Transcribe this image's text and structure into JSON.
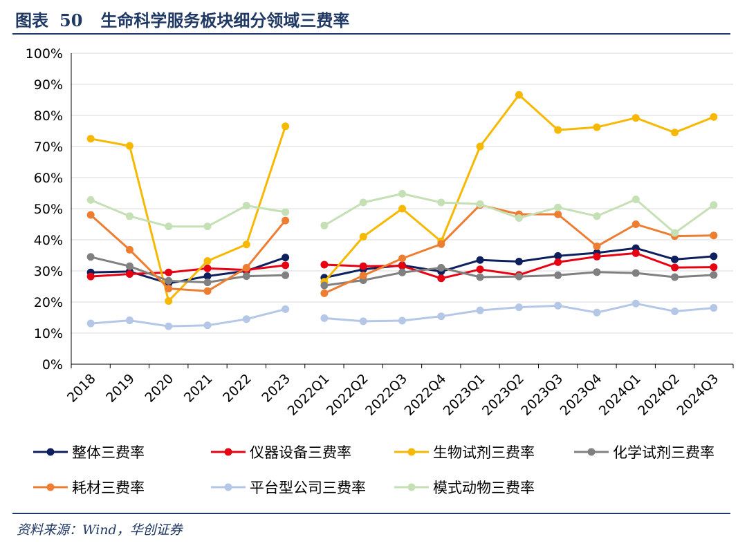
{
  "figure": {
    "label": "图表",
    "number": "50",
    "title": "生命科学服务板块细分领域三费率",
    "source": "资料来源：Wind，华创证券"
  },
  "colors": {
    "header": "#1f3864",
    "axis": "#000000",
    "grid": "#d9d9d9"
  },
  "chart_data": {
    "type": "line",
    "title": "",
    "xlabel": "",
    "ylabel": "",
    "ylim": [
      0,
      100
    ],
    "yticks": [
      "0%",
      "10%",
      "20%",
      "30%",
      "40%",
      "50%",
      "60%",
      "70%",
      "80%",
      "90%",
      "100%"
    ],
    "grid": true,
    "legend_position": "bottom",
    "categories": [
      "2018",
      "2019",
      "2020",
      "2021",
      "2022",
      "2023",
      "2022Q1",
      "2022Q2",
      "2022Q3",
      "2022Q4",
      "2023Q1",
      "2023Q2",
      "2023Q3",
      "2023Q4",
      "2024Q1",
      "2024Q2",
      "2024Q3"
    ],
    "segments": [
      [
        0,
        5
      ],
      [
        6,
        16
      ]
    ],
    "series": [
      {
        "name": "整体三费率",
        "color": "#0d1f5c",
        "values": [
          29.5,
          29.8,
          26,
          28.3,
          30,
          34.3,
          27.8,
          30.5,
          31.8,
          29.8,
          33.5,
          33,
          34.8,
          35.8,
          37.3,
          33.7,
          34.7
        ]
      },
      {
        "name": "仪器设备三费率",
        "color": "#e60012",
        "values": [
          28.2,
          29,
          29.5,
          30.8,
          30.3,
          31.8,
          32,
          31.5,
          31.6,
          27.6,
          30.5,
          28.7,
          32.8,
          34.6,
          35.7,
          31.1,
          31.2
        ]
      },
      {
        "name": "生物试剂三费率",
        "color": "#f6b800",
        "values": [
          72.5,
          70.2,
          20.3,
          33.2,
          38.5,
          76.5,
          26.5,
          41,
          50,
          39.5,
          70,
          86.6,
          75.3,
          76.2,
          79.2,
          74.5,
          79.5
        ]
      },
      {
        "name": "化学试剂三费率",
        "color": "#808080",
        "values": [
          34.5,
          31.5,
          26.8,
          26.3,
          28.3,
          28.6,
          25.3,
          27,
          29.5,
          31,
          28,
          28.2,
          28.6,
          29.6,
          29.3,
          28,
          28.7
        ]
      },
      {
        "name": "耗材三费率",
        "color": "#ed7d31",
        "values": [
          48,
          36.8,
          24.3,
          23.5,
          31,
          46.2,
          22.8,
          28.5,
          34,
          38.6,
          51.2,
          48.2,
          48.2,
          37.9,
          45,
          41.2,
          41.4
        ]
      },
      {
        "name": "平台型公司三费率",
        "color": "#b4c7e7",
        "values": [
          13.1,
          14.1,
          12.2,
          12.5,
          14.5,
          17.7,
          14.8,
          13.8,
          14,
          15.4,
          17.3,
          18.3,
          18.8,
          16.6,
          19.5,
          17,
          18.1
        ]
      },
      {
        "name": "模式动物三费率",
        "color": "#c5e0b4",
        "values": [
          52.8,
          47.6,
          44.3,
          44.3,
          51,
          48.9,
          44.6,
          52,
          54.8,
          52,
          51.5,
          47,
          50.4,
          47.6,
          53,
          42.2,
          51.2
        ]
      }
    ]
  }
}
